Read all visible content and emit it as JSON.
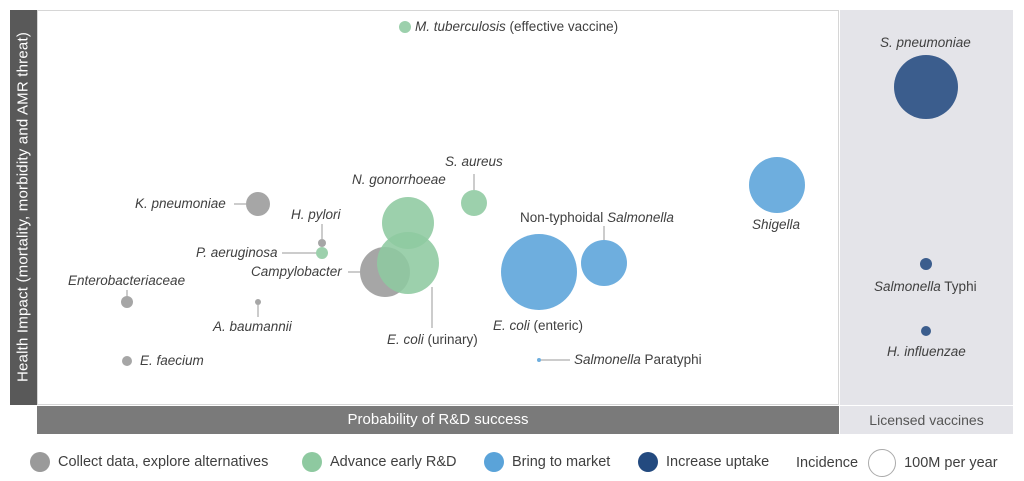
{
  "chart_data": {
    "type": "scatter",
    "ylabel": "Health Impact (mortality, morbidity and AMR threat)",
    "xlabel": "Probability of R&D success",
    "licensed_label": "Licensed vaccines",
    "legend": {
      "categories": [
        {
          "name": "Collect data, explore alternatives",
          "color": "#9a9a9a"
        },
        {
          "name": "Advance early R&D",
          "color": "#8ec9a0"
        },
        {
          "name": "Bring to market",
          "color": "#5aa3d9"
        },
        {
          "name": "Increase uptake",
          "color": "#234a7f"
        }
      ],
      "size_title": "Incidence",
      "size_ref_label": "100M per year"
    },
    "points": [
      {
        "label_parts": [
          {
            "t": "M. tuberculosis",
            "i": true
          },
          {
            "t": " (effective vaccine)",
            "i": false
          }
        ],
        "category": "Advance early R&D",
        "color": "#8ec9a0"
      },
      {
        "label_parts": [
          {
            "t": "S. aureus",
            "i": true
          }
        ],
        "category": "Advance early R&D",
        "color": "#8ec9a0"
      },
      {
        "label_parts": [
          {
            "t": "N. gonorrhoeae",
            "i": true
          }
        ],
        "category": "Advance early R&D",
        "color": "#8ec9a0"
      },
      {
        "label_parts": [
          {
            "t": "K. pneumoniae",
            "i": true
          }
        ],
        "category": "Collect data, explore alternatives",
        "color": "#9a9a9a"
      },
      {
        "label_parts": [
          {
            "t": "H. pylori",
            "i": true
          }
        ],
        "category": "Collect data, explore alternatives",
        "color": "#9a9a9a"
      },
      {
        "label_parts": [
          {
            "t": "P. aeruginosa",
            "i": true
          }
        ],
        "category": "Advance early R&D",
        "color": "#8ec9a0"
      },
      {
        "label_parts": [
          {
            "t": "Campylobacter",
            "i": true
          }
        ],
        "category": "Collect data, explore alternatives",
        "color": "#9a9a9a"
      },
      {
        "label_parts": [
          {
            "t": "E. coli",
            "i": true
          },
          {
            "t": " (urinary)",
            "i": false
          }
        ],
        "category": "Advance early R&D",
        "color": "#8ec9a0"
      },
      {
        "label_parts": [
          {
            "t": "Enterobacteriaceae",
            "i": true
          }
        ],
        "category": "Collect data, explore alternatives",
        "color": "#9a9a9a"
      },
      {
        "label_parts": [
          {
            "t": "A. baumannii",
            "i": true
          }
        ],
        "category": "Collect data, explore alternatives",
        "color": "#9a9a9a"
      },
      {
        "label_parts": [
          {
            "t": "E. faecium",
            "i": true
          }
        ],
        "category": "Collect data, explore alternatives",
        "color": "#9a9a9a"
      },
      {
        "label_parts": [
          {
            "t": "E. coli",
            "i": true
          },
          {
            "t": " (enteric)",
            "i": false
          }
        ],
        "category": "Bring to market",
        "color": "#5aa3d9"
      },
      {
        "label_parts": [
          {
            "t": "Non-typhoidal ",
            "i": false
          },
          {
            "t": "Salmonella",
            "i": true
          }
        ],
        "category": "Bring to market",
        "color": "#5aa3d9"
      },
      {
        "label_parts": [
          {
            "t": "Salmonella",
            "i": true
          },
          {
            "t": " Paratyphi",
            "i": false
          }
        ],
        "category": "Bring to market",
        "color": "#5aa3d9"
      },
      {
        "label_parts": [
          {
            "t": "Shigella",
            "i": true
          }
        ],
        "category": "Bring to market",
        "color": "#5aa3d9"
      },
      {
        "label_parts": [
          {
            "t": "S. pneumoniae",
            "i": true
          }
        ],
        "category": "Increase uptake",
        "color": "#234a7f"
      },
      {
        "label_parts": [
          {
            "t": "Salmonella",
            "i": true
          },
          {
            "t": " Typhi",
            "i": false
          }
        ],
        "category": "Increase uptake",
        "color": "#234a7f"
      },
      {
        "label_parts": [
          {
            "t": "H. influenzae",
            "i": true
          }
        ],
        "category": "Increase uptake",
        "color": "#234a7f"
      }
    ]
  }
}
